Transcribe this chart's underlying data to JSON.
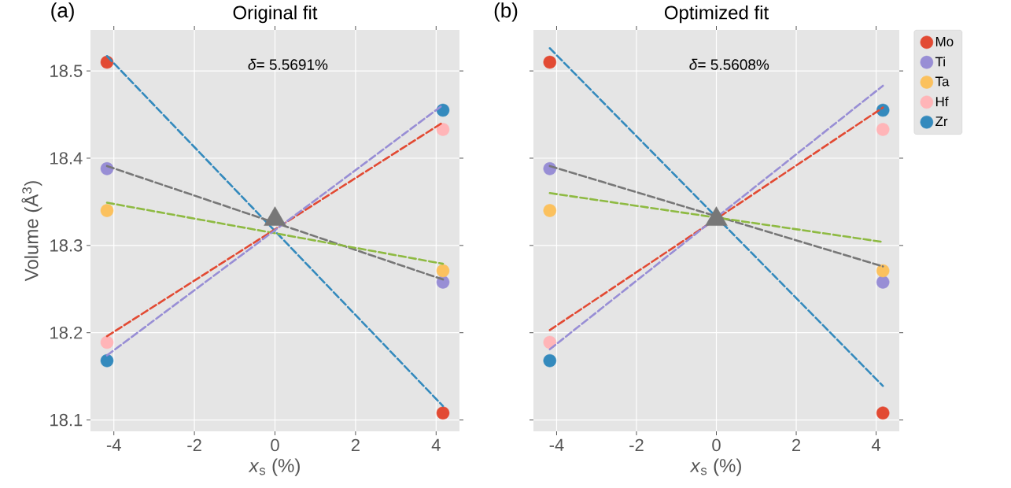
{
  "chart_data": [
    {
      "type": "scatter",
      "title": "Original fit",
      "xlabel": "*x*$_{s}$ (%)",
      "ylabel": "Volume (Å$^{3}$)",
      "annotations": [
        "(a)",
        "*δ*= 5.5691%"
      ],
      "xlim": [
        -4.58,
        4.58
      ],
      "ylim": [
        18.087,
        18.547
      ],
      "xticks": [
        -4,
        -2,
        0,
        2,
        4
      ],
      "yticks": [
        18.1,
        18.2,
        18.3,
        18.4,
        18.5
      ],
      "grid": true,
      "series": [
        {
          "marker": "circle",
          "color": "#e24a33",
          "x": [
            -4.17,
            4.17
          ],
          "values": [
            18.51,
            18.108
          ]
        },
        {
          "marker": "circle",
          "color": "#988ed5",
          "x": [
            -4.17,
            4.17
          ],
          "values": [
            18.388,
            18.258
          ]
        },
        {
          "marker": "circle",
          "color": "#fbc15e",
          "x": [
            -4.17,
            4.17
          ],
          "values": [
            18.34,
            18.271
          ]
        },
        {
          "marker": "circle",
          "color": "#ffb5b8",
          "x": [
            -4.17,
            4.17
          ],
          "values": [
            18.189,
            18.433
          ]
        },
        {
          "marker": "circle",
          "color": "#348abd",
          "x": [
            -4.17,
            4.17
          ],
          "values": [
            18.168,
            18.455
          ]
        },
        {
          "type": "line",
          "line_style": "dashed",
          "color": "#348abd",
          "x": [
            -4.17,
            4.17
          ],
          "values": [
            18.517,
            18.116
          ]
        },
        {
          "type": "line",
          "line_style": "dashed",
          "color": "#777777",
          "x": [
            -4.17,
            4.17
          ],
          "values": [
            18.391,
            18.261
          ]
        },
        {
          "type": "line",
          "line_style": "dashed",
          "color": "#8eba42",
          "x": [
            -4.17,
            4.17
          ],
          "values": [
            18.349,
            18.279
          ]
        },
        {
          "type": "line",
          "line_style": "dashed",
          "color": "#e24a33",
          "x": [
            -4.17,
            4.17
          ],
          "values": [
            18.196,
            18.441
          ]
        },
        {
          "type": "line",
          "line_style": "dashed",
          "color": "#988ed5",
          "x": [
            -4.17,
            4.17
          ],
          "values": [
            18.174,
            18.461
          ]
        },
        {
          "marker": "triangle",
          "color": "#777777",
          "x": [
            0
          ],
          "values": [
            18.33
          ]
        }
      ]
    },
    {
      "type": "scatter",
      "title": "Optimized fit",
      "xlabel": "*x*$_{s}$ (%)",
      "annotations": [
        "(b)",
        "*δ*= 5.5608%"
      ],
      "xlim": [
        -4.58,
        4.58
      ],
      "ylim": [
        18.087,
        18.547
      ],
      "xticks": [
        -4,
        -2,
        0,
        2,
        4
      ],
      "yticks": [
        18.1,
        18.2,
        18.3,
        18.4,
        18.5
      ],
      "grid": true,
      "tick_labels": "x",
      "legend": "right",
      "series": [
        {
          "name": "Mo",
          "marker": "circle",
          "color": "#e24a33",
          "x": [
            -4.17,
            4.17
          ],
          "values": [
            18.51,
            18.108
          ]
        },
        {
          "name": "Ti",
          "marker": "circle",
          "color": "#988ed5",
          "x": [
            -4.17,
            4.17
          ],
          "values": [
            18.388,
            18.258
          ]
        },
        {
          "name": "Ta",
          "marker": "circle",
          "color": "#fbc15e",
          "x": [
            -4.17,
            4.17
          ],
          "values": [
            18.34,
            18.271
          ]
        },
        {
          "name": "Hf",
          "marker": "circle",
          "color": "#ffb5b8",
          "x": [
            -4.17,
            4.17
          ],
          "values": [
            18.189,
            18.433
          ]
        },
        {
          "name": "Zr",
          "marker": "circle",
          "color": "#348abd",
          "x": [
            -4.17,
            4.17
          ],
          "values": [
            18.168,
            18.455
          ]
        },
        {
          "type": "line",
          "line_style": "dashed",
          "color": "#348abd",
          "x": [
            -4.17,
            4.17
          ],
          "values": [
            18.526,
            18.139
          ]
        },
        {
          "type": "line",
          "line_style": "dashed",
          "color": "#777777",
          "x": [
            -4.17,
            4.17
          ],
          "values": [
            18.391,
            18.276
          ]
        },
        {
          "type": "line",
          "line_style": "dashed",
          "color": "#8eba42",
          "x": [
            -4.17,
            4.17
          ],
          "values": [
            18.36,
            18.304
          ]
        },
        {
          "type": "line",
          "line_style": "dashed",
          "color": "#e24a33",
          "x": [
            -4.17,
            4.17
          ],
          "values": [
            18.203,
            18.458
          ]
        },
        {
          "type": "line",
          "line_style": "dashed",
          "color": "#988ed5",
          "x": [
            -4.17,
            4.17
          ],
          "values": [
            18.181,
            18.483
          ]
        },
        {
          "marker": "triangle",
          "color": "#777777",
          "x": [
            0
          ],
          "values": [
            18.33
          ]
        }
      ]
    }
  ]
}
